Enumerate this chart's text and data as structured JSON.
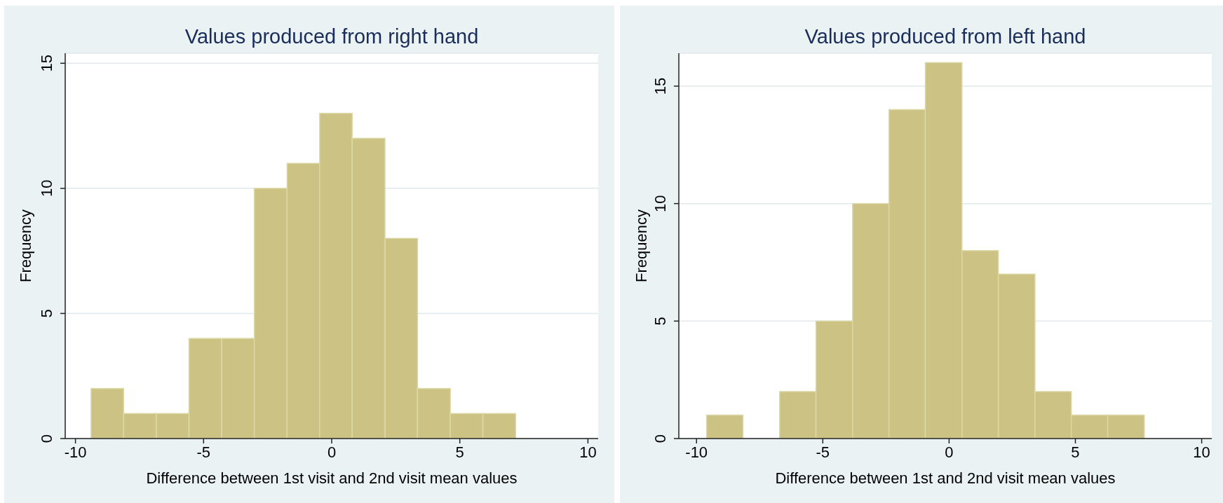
{
  "chart_data": [
    {
      "type": "histogram",
      "title": "Values produced from right hand",
      "xlabel": "Difference between 1st visit and 2nd visit mean values",
      "ylabel": "Frequency",
      "bins": [
        -9.39,
        -8.12,
        -6.84,
        -5.57,
        -4.29,
        -3.02,
        -1.74,
        -0.47,
        0.8,
        2.08,
        3.35,
        4.63,
        5.9,
        7.18
      ],
      "values": [
        2,
        1,
        1,
        4,
        4,
        10,
        11,
        13,
        12,
        8,
        2,
        1,
        1
      ],
      "color": "#cbc283",
      "xlim": [
        -10.4,
        10.4
      ],
      "xticks": [
        -10,
        -5,
        0,
        5,
        10
      ],
      "ylim": [
        0,
        15.4
      ],
      "yticks": [
        0,
        5,
        10,
        15
      ],
      "grid": "y"
    },
    {
      "type": "histogram",
      "title": "Values produced from left hand",
      "xlabel": "Difference between 1st and 2nd visit mean values",
      "ylabel": "Frequency",
      "bins": [
        -9.6,
        -8.16,
        -6.71,
        -5.27,
        -3.82,
        -2.38,
        -0.94,
        0.51,
        1.95,
        3.4,
        4.84,
        6.28,
        7.73
      ],
      "values": [
        1,
        0,
        2,
        5,
        10,
        14,
        16,
        8,
        7,
        2,
        1,
        1
      ],
      "color": "#cbc283",
      "xlim": [
        -10.7,
        10.4
      ],
      "xticks": [
        -10,
        -5,
        0,
        5,
        10
      ],
      "ylim": [
        0,
        16.4
      ],
      "yticks": [
        0,
        5,
        10,
        15
      ],
      "grid": "y"
    }
  ]
}
